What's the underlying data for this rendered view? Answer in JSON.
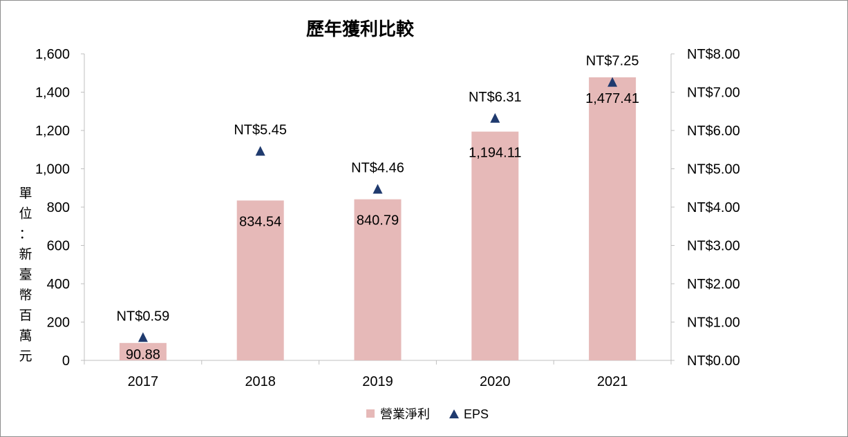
{
  "chart_data": {
    "type": "bar",
    "title": "歷年獲利比較",
    "ylabel": "單位：新臺幣百萬元",
    "categories": [
      "2017",
      "2018",
      "2019",
      "2020",
      "2021"
    ],
    "ylim": [
      0,
      1600
    ],
    "y_ticks": [
      "0",
      "200",
      "400",
      "600",
      "800",
      "1,000",
      "1,200",
      "1,400",
      "1,600"
    ],
    "y2lim": [
      0,
      8
    ],
    "y2_ticks": [
      "NT$0.00",
      "NT$1.00",
      "NT$2.00",
      "NT$3.00",
      "NT$4.00",
      "NT$5.00",
      "NT$6.00",
      "NT$7.00",
      "NT$8.00"
    ],
    "series": [
      {
        "name": "營業淨利",
        "type": "bar",
        "axis": "left",
        "values": [
          90.88,
          834.54,
          840.79,
          1194.11,
          1477.41
        ],
        "labels": [
          "90.88",
          "834.54",
          "840.79",
          "1,194.11",
          "1,477.41"
        ]
      },
      {
        "name": "EPS",
        "type": "marker",
        "axis": "right",
        "values": [
          0.59,
          5.45,
          4.46,
          6.31,
          7.25
        ],
        "labels": [
          "NT$0.59",
          "NT$5.45",
          "NT$4.46",
          "NT$6.31",
          "NT$7.25"
        ]
      }
    ],
    "legend_position": "bottom",
    "grid": false,
    "colors": {
      "bar": "#e6b9b8",
      "marker": "#1f3a6e",
      "axis": "#bfbfbf"
    }
  }
}
